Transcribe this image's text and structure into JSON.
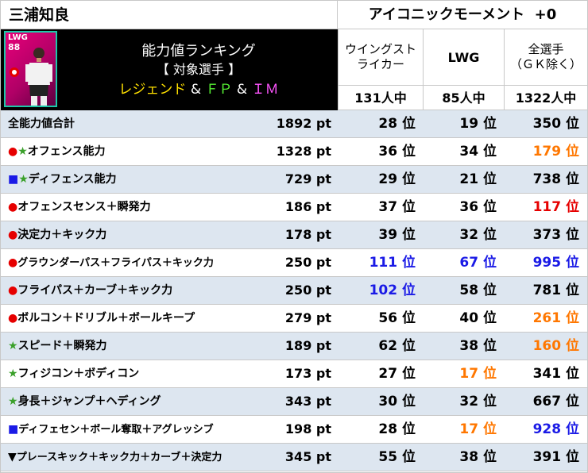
{
  "header": {
    "player_name": "三浦知良",
    "card_type": "アイコニックモーメント  +0"
  },
  "player_card": {
    "position": "LWG",
    "overall": "88"
  },
  "banner": {
    "title": "能力値ランキング",
    "subtitle": "【 対象選手 】",
    "tag_legend": "レジェンド",
    "tag_amp1": " & ",
    "tag_fp": "ＦＰ",
    "tag_amp2": " & ",
    "tag_im": "ＩＭ"
  },
  "columns": [
    {
      "header_line1": "ウイングスト",
      "header_line2": "ライカー",
      "count": "131人中"
    },
    {
      "header_line1": "LWG",
      "header_line2": "",
      "count": "85人中"
    },
    {
      "header_line1": "全選手",
      "header_line2": "（ＧＫ除く）",
      "count": "1322人中"
    }
  ],
  "colors": {
    "red": "#e60000",
    "green": "#3aa02a",
    "blue": "#1a1ae6",
    "orange": "#ff7700",
    "row_alt": "#dde6f0"
  },
  "rows": [
    {
      "marker": "",
      "label": "全能力値合計",
      "points": "1892 pt",
      "ranks": [
        "28 位",
        "19 位",
        "350 位"
      ],
      "rank_colors": [
        "",
        "",
        ""
      ]
    },
    {
      "marker": "red-circle+green-star",
      "label": "オフェンス能力",
      "points": "1328 pt",
      "ranks": [
        "36 位",
        "34 位",
        "179 位"
      ],
      "rank_colors": [
        "",
        "",
        "orange"
      ]
    },
    {
      "marker": "blue-square+green-star",
      "label": "ディフェンス能力",
      "points": "729 pt",
      "ranks": [
        "29 位",
        "21 位",
        "738 位"
      ],
      "rank_colors": [
        "",
        "",
        ""
      ]
    },
    {
      "marker": "red-circle",
      "label": "オフェンスセンス＋瞬発力",
      "points": "186 pt",
      "ranks": [
        "37 位",
        "36 位",
        "117 位"
      ],
      "rank_colors": [
        "",
        "",
        "red"
      ]
    },
    {
      "marker": "red-circle",
      "label": "決定力＋キック力",
      "points": "178 pt",
      "ranks": [
        "39 位",
        "32 位",
        "373 位"
      ],
      "rank_colors": [
        "",
        "",
        ""
      ]
    },
    {
      "marker": "red-circle",
      "label": "グラウンダーパス＋フライパス＋キック力",
      "points": "250 pt",
      "ranks": [
        "111 位",
        "67 位",
        "995 位"
      ],
      "rank_colors": [
        "blue",
        "blue",
        "blue"
      ]
    },
    {
      "marker": "red-circle",
      "label": "フライパス＋カーブ＋キック力",
      "points": "250 pt",
      "ranks": [
        "102 位",
        "58 位",
        "781 位"
      ],
      "rank_colors": [
        "blue",
        "",
        ""
      ]
    },
    {
      "marker": "red-circle",
      "label": "ボルコン＋ドリブル＋ボールキープ",
      "points": "279 pt",
      "ranks": [
        "56 位",
        "40 位",
        "261 位"
      ],
      "rank_colors": [
        "",
        "",
        "orange"
      ]
    },
    {
      "marker": "green-star",
      "label": "スピード＋瞬発力",
      "points": "189 pt",
      "ranks": [
        "62 位",
        "38 位",
        "160 位"
      ],
      "rank_colors": [
        "",
        "",
        "orange"
      ]
    },
    {
      "marker": "green-star",
      "label": "フィジコン＋ボディコン",
      "points": "173 pt",
      "ranks": [
        "27 位",
        "17 位",
        "341 位"
      ],
      "rank_colors": [
        "",
        "orange",
        ""
      ]
    },
    {
      "marker": "green-star",
      "label": "身長＋ジャンプ＋ヘディング",
      "points": "343 pt",
      "ranks": [
        "30 位",
        "32 位",
        "667 位"
      ],
      "rank_colors": [
        "",
        "",
        ""
      ]
    },
    {
      "marker": "blue-square",
      "label": "ディフェセン＋ボール奪取＋アグレッシブ",
      "points": "198 pt",
      "ranks": [
        "28 位",
        "17 位",
        "928 位"
      ],
      "rank_colors": [
        "",
        "orange",
        "blue"
      ]
    },
    {
      "marker": "black-triangle",
      "label": "プレースキック＋キック力＋カーブ＋決定力",
      "points": "345 pt",
      "ranks": [
        "55 位",
        "38 位",
        "391 位"
      ],
      "rank_colors": [
        "",
        "",
        ""
      ]
    }
  ]
}
